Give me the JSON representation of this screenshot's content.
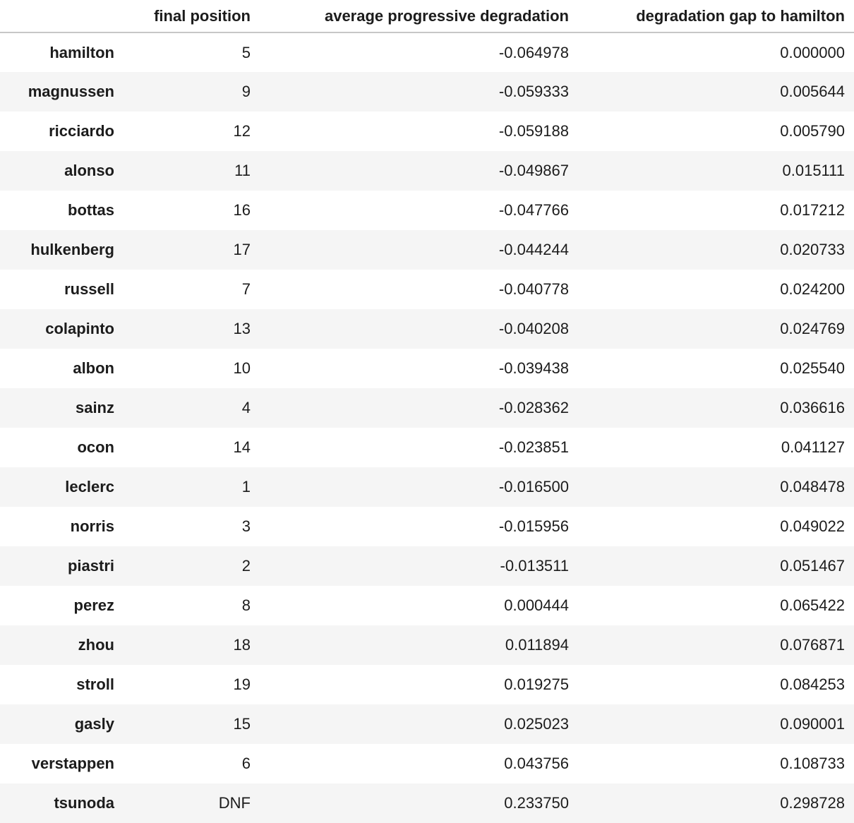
{
  "colors": {
    "background": "#ffffff",
    "stripe": "#f5f5f5",
    "header_border": "#c7c7c7",
    "text": "#1c1c1c"
  },
  "chart_data": {
    "type": "table",
    "index_name": "",
    "columns": [
      "final position",
      "average progressive degradation",
      "degradation gap to hamilton"
    ],
    "index": [
      "hamilton",
      "magnussen",
      "ricciardo",
      "alonso",
      "bottas",
      "hulkenberg",
      "russell",
      "colapinto",
      "albon",
      "sainz",
      "ocon",
      "leclerc",
      "norris",
      "piastri",
      "perez",
      "zhou",
      "stroll",
      "gasly",
      "verstappen",
      "tsunoda"
    ],
    "rows": [
      [
        "5",
        "-0.064978",
        "0.000000"
      ],
      [
        "9",
        "-0.059333",
        "0.005644"
      ],
      [
        "12",
        "-0.059188",
        "0.005790"
      ],
      [
        "11",
        "-0.049867",
        "0.015111"
      ],
      [
        "16",
        "-0.047766",
        "0.017212"
      ],
      [
        "17",
        "-0.044244",
        "0.020733"
      ],
      [
        "7",
        "-0.040778",
        "0.024200"
      ],
      [
        "13",
        "-0.040208",
        "0.024769"
      ],
      [
        "10",
        "-0.039438",
        "0.025540"
      ],
      [
        "4",
        "-0.028362",
        "0.036616"
      ],
      [
        "14",
        "-0.023851",
        "0.041127"
      ],
      [
        "1",
        "-0.016500",
        "0.048478"
      ],
      [
        "3",
        "-0.015956",
        "0.049022"
      ],
      [
        "2",
        "-0.013511",
        "0.051467"
      ],
      [
        "8",
        "0.000444",
        "0.065422"
      ],
      [
        "18",
        "0.011894",
        "0.076871"
      ],
      [
        "19",
        "0.019275",
        "0.084253"
      ],
      [
        "15",
        "0.025023",
        "0.090001"
      ],
      [
        "6",
        "0.043756",
        "0.108733"
      ],
      [
        "DNF",
        "0.233750",
        "0.298728"
      ]
    ]
  }
}
